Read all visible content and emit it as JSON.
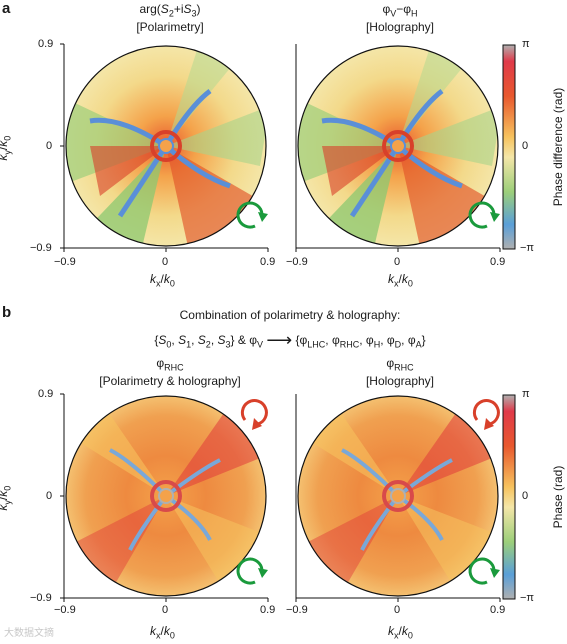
{
  "panel_a": {
    "letter": "a",
    "left_title_line1": "arg(S₂+iS₃)",
    "left_title_line2": "[Polarimetry]",
    "right_title_line1": "φV−φH",
    "right_title_line2": "[Holography]",
    "colorbar_label": "Phase difference (rad)",
    "cb_top": "π",
    "cb_mid": "0",
    "cb_bottom": "−π"
  },
  "panel_b": {
    "letter": "b",
    "header": "Combination of polarimetry & holography:",
    "formula_left": "{S0, S1, S2, S3} & φV",
    "formula_right": "{φLHC, φRHC, φH, φD, φA}",
    "left_title_line1": "φRHC",
    "left_title_line2": "[Polarimetry & holography]",
    "right_title_line1": "φRHC",
    "right_title_line2": "[Holography]",
    "colorbar_label": "Phase  (rad)",
    "cb_top": "π",
    "cb_mid": "0",
    "cb_bottom": "−π"
  },
  "axes": {
    "ky_label": "ky/k0",
    "kx_label": "kx/k0",
    "tick_pos": "0.9",
    "tick_zero": "0",
    "tick_neg": "−0.9"
  },
  "colors": {
    "arrow_green": "#1a9a3c",
    "arrow_red": "#d8402a"
  },
  "watermark": "大数据文摘"
}
